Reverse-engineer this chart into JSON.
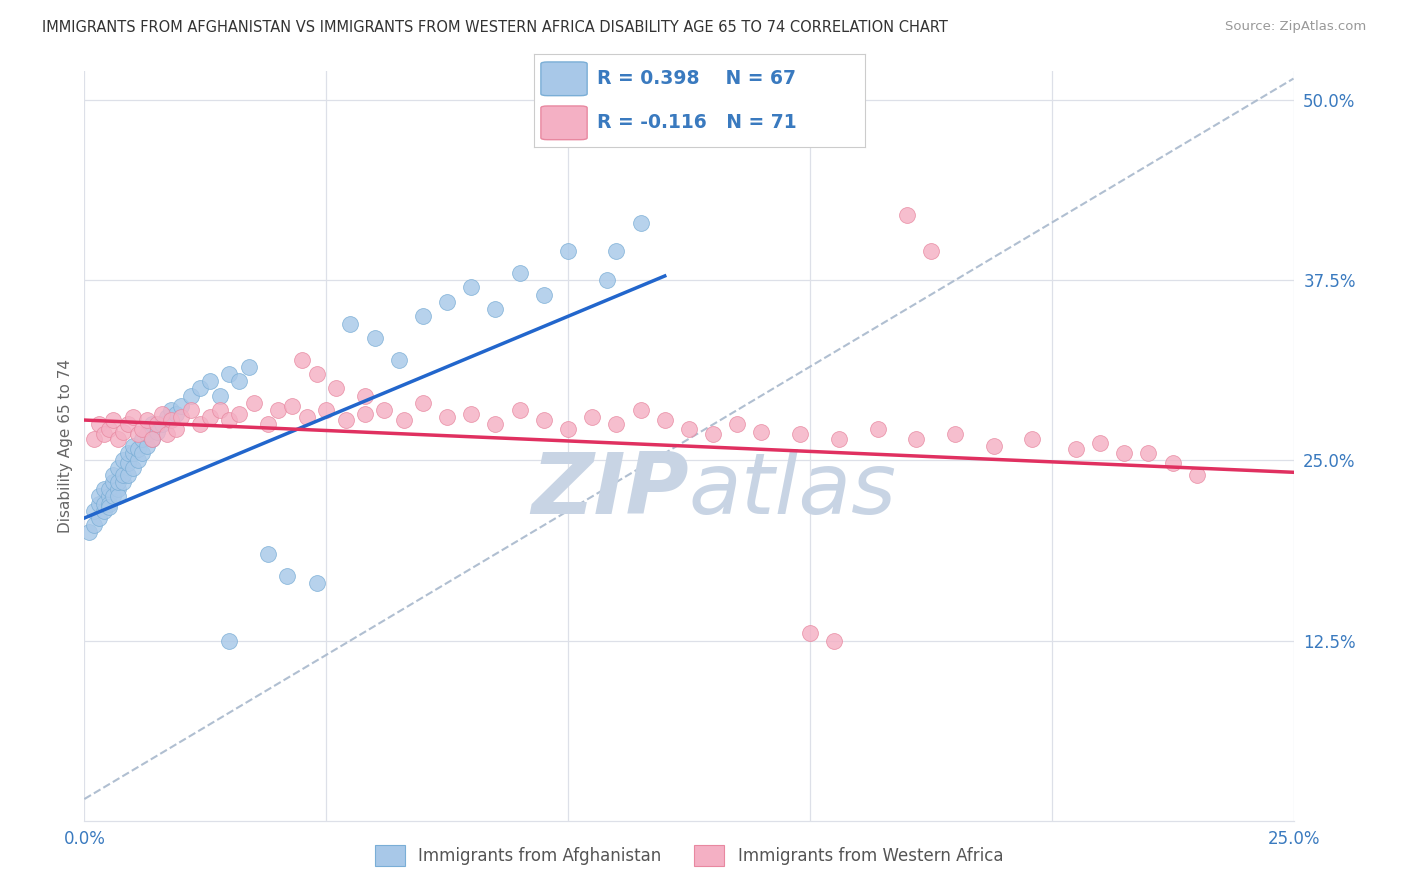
{
  "title": "IMMIGRANTS FROM AFGHANISTAN VS IMMIGRANTS FROM WESTERN AFRICA DISABILITY AGE 65 TO 74 CORRELATION CHART",
  "source": "Source: ZipAtlas.com",
  "ylabel": "Disability Age 65 to 74",
  "xlim": [
    0.0,
    0.25
  ],
  "ylim": [
    0.0,
    0.52
  ],
  "x_ticks": [
    0.0,
    0.05,
    0.1,
    0.15,
    0.2,
    0.25
  ],
  "x_tick_labels": [
    "0.0%",
    "",
    "",
    "",
    "",
    "25.0%"
  ],
  "y_ticks": [
    0.125,
    0.25,
    0.375,
    0.5
  ],
  "y_tick_labels": [
    "12.5%",
    "25.0%",
    "37.5%",
    "50.0%"
  ],
  "r_afg": 0.398,
  "n_afg": 67,
  "r_waf": -0.116,
  "n_waf": 71,
  "legend_label1": "Immigrants from Afghanistan",
  "legend_label2": "Immigrants from Western Africa",
  "color_afg_fill": "#a8c8e8",
  "color_afg_edge": "#7aaed6",
  "color_waf_fill": "#f4b0c4",
  "color_waf_edge": "#e888a0",
  "color_reg_blue": "#2266cc",
  "color_reg_pink": "#e03060",
  "color_dash": "#a8b8cc",
  "color_grid": "#dde0e8",
  "color_title": "#333333",
  "color_axis_blue": "#3a7abf",
  "color_watermark": "#c8d4e4",
  "color_source": "#999999",
  "color_legend_text": "#3a7abf",
  "color_ylabel": "#666666",
  "afg_x": [
    0.001,
    0.002,
    0.002,
    0.003,
    0.003,
    0.003,
    0.004,
    0.004,
    0.004,
    0.005,
    0.005,
    0.005,
    0.005,
    0.006,
    0.006,
    0.006,
    0.007,
    0.007,
    0.007,
    0.007,
    0.008,
    0.008,
    0.008,
    0.009,
    0.009,
    0.009,
    0.01,
    0.01,
    0.01,
    0.011,
    0.011,
    0.012,
    0.012,
    0.013,
    0.013,
    0.014,
    0.014,
    0.015,
    0.016,
    0.017,
    0.018,
    0.019,
    0.02,
    0.022,
    0.024,
    0.026,
    0.028,
    0.03,
    0.032,
    0.034,
    0.038,
    0.042,
    0.048,
    0.055,
    0.06,
    0.065,
    0.07,
    0.075,
    0.08,
    0.085,
    0.09,
    0.095,
    0.1,
    0.108,
    0.11,
    0.115,
    0.03
  ],
  "afg_y": [
    0.2,
    0.205,
    0.215,
    0.22,
    0.21,
    0.225,
    0.215,
    0.22,
    0.23,
    0.225,
    0.22,
    0.218,
    0.23,
    0.225,
    0.235,
    0.24,
    0.23,
    0.225,
    0.235,
    0.245,
    0.235,
    0.24,
    0.25,
    0.24,
    0.248,
    0.255,
    0.245,
    0.255,
    0.26,
    0.25,
    0.258,
    0.255,
    0.265,
    0.26,
    0.268,
    0.265,
    0.275,
    0.27,
    0.275,
    0.28,
    0.285,
    0.282,
    0.288,
    0.295,
    0.3,
    0.305,
    0.295,
    0.31,
    0.305,
    0.315,
    0.185,
    0.17,
    0.165,
    0.345,
    0.335,
    0.32,
    0.35,
    0.36,
    0.37,
    0.355,
    0.38,
    0.365,
    0.395,
    0.375,
    0.395,
    0.415,
    0.125
  ],
  "waf_x": [
    0.002,
    0.003,
    0.004,
    0.005,
    0.006,
    0.007,
    0.008,
    0.009,
    0.01,
    0.011,
    0.012,
    0.013,
    0.014,
    0.015,
    0.016,
    0.017,
    0.018,
    0.019,
    0.02,
    0.022,
    0.024,
    0.026,
    0.028,
    0.03,
    0.032,
    0.035,
    0.038,
    0.04,
    0.043,
    0.046,
    0.05,
    0.054,
    0.058,
    0.062,
    0.066,
    0.07,
    0.075,
    0.08,
    0.085,
    0.09,
    0.095,
    0.1,
    0.105,
    0.11,
    0.115,
    0.12,
    0.125,
    0.13,
    0.135,
    0.14,
    0.148,
    0.156,
    0.164,
    0.172,
    0.18,
    0.188,
    0.196,
    0.205,
    0.21,
    0.215,
    0.17,
    0.175,
    0.045,
    0.048,
    0.052,
    0.058,
    0.15,
    0.155,
    0.22,
    0.225,
    0.23
  ],
  "waf_y": [
    0.265,
    0.275,
    0.268,
    0.272,
    0.278,
    0.265,
    0.27,
    0.275,
    0.28,
    0.268,
    0.272,
    0.278,
    0.265,
    0.275,
    0.282,
    0.268,
    0.278,
    0.272,
    0.28,
    0.285,
    0.275,
    0.28,
    0.285,
    0.278,
    0.282,
    0.29,
    0.275,
    0.285,
    0.288,
    0.28,
    0.285,
    0.278,
    0.282,
    0.285,
    0.278,
    0.29,
    0.28,
    0.282,
    0.275,
    0.285,
    0.278,
    0.272,
    0.28,
    0.275,
    0.285,
    0.278,
    0.272,
    0.268,
    0.275,
    0.27,
    0.268,
    0.265,
    0.272,
    0.265,
    0.268,
    0.26,
    0.265,
    0.258,
    0.262,
    0.255,
    0.42,
    0.395,
    0.32,
    0.31,
    0.3,
    0.295,
    0.13,
    0.125,
    0.255,
    0.248,
    0.24
  ]
}
